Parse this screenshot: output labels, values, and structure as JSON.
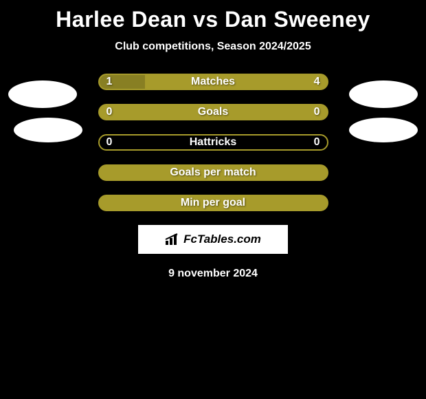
{
  "title": "Harlee Dean vs Dan Sweeney",
  "subtitle": "Club competitions, Season 2024/2025",
  "colors": {
    "background": "#000000",
    "bar_olive": "#a79b2b",
    "bar_border": "#a79b2b",
    "bar_empty": "#000000",
    "text": "#ffffff"
  },
  "avatars": {
    "left1": {
      "shape": "ellipse"
    },
    "left2": {
      "shape": "ellipse"
    },
    "right1": {
      "shape": "ellipse"
    },
    "right2": {
      "shape": "ellipse"
    }
  },
  "stats": [
    {
      "label": "Matches",
      "left_value": "1",
      "right_value": "4",
      "left_fill_pct": 20,
      "right_fill_pct": 80,
      "fill_color": "#a79b2b",
      "border_color": "#a79b2b",
      "show_values": true,
      "full_bg": true
    },
    {
      "label": "Goals",
      "left_value": "0",
      "right_value": "0",
      "left_fill_pct": 0,
      "right_fill_pct": 0,
      "fill_color": "#a79b2b",
      "border_color": "#a79b2b",
      "show_values": true,
      "full_bg": true
    },
    {
      "label": "Hattricks",
      "left_value": "0",
      "right_value": "0",
      "left_fill_pct": 0,
      "right_fill_pct": 0,
      "fill_color": "#a79b2b",
      "border_color": "#a79b2b",
      "show_values": true,
      "full_bg": false
    },
    {
      "label": "Goals per match",
      "left_value": "",
      "right_value": "",
      "left_fill_pct": 100,
      "right_fill_pct": 0,
      "fill_color": "#a79b2b",
      "border_color": "#a79b2b",
      "show_values": false,
      "full_bg": true
    },
    {
      "label": "Min per goal",
      "left_value": "",
      "right_value": "",
      "left_fill_pct": 100,
      "right_fill_pct": 0,
      "fill_color": "#a79b2b",
      "border_color": "#a79b2b",
      "show_values": false,
      "full_bg": true
    }
  ],
  "logo_text": "FcTables.com",
  "date_text": "9 november 2024"
}
